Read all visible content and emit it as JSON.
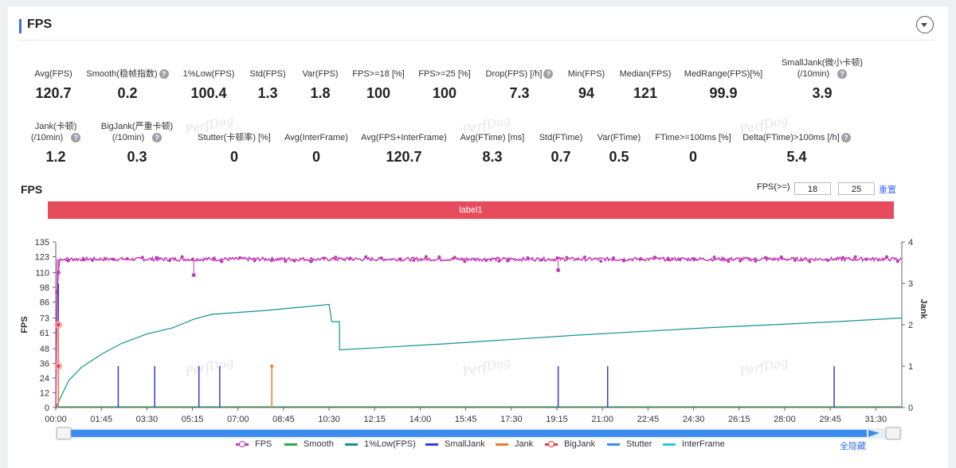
{
  "section": {
    "title": "FPS"
  },
  "stats_row1": [
    {
      "label": "Avg(FPS)",
      "value": "120.7"
    },
    {
      "label": "Smooth(稳帧指数)",
      "value": "0.2",
      "help": true
    },
    {
      "label": "1%Low(FPS)",
      "value": "100.4"
    },
    {
      "label": "Std(FPS)",
      "value": "1.3"
    },
    {
      "label": "Var(FPS)",
      "value": "1.8"
    },
    {
      "label": "FPS>=18 [%]",
      "value": "100"
    },
    {
      "label": "FPS>=25 [%]",
      "value": "100"
    },
    {
      "label": "Drop(FPS) [/h]",
      "value": "7.3",
      "help": true
    },
    {
      "label": "Min(FPS)",
      "value": "94"
    },
    {
      "label": "Median(FPS)",
      "value": "121"
    },
    {
      "label": "MedRange(FPS)[%]",
      "value": "99.9"
    },
    {
      "label": "SmallJank(微小卡顿)",
      "label2": "(/10min)",
      "value": "3.9",
      "help": true
    }
  ],
  "stats_row2": [
    {
      "label": "Jank(卡顿)",
      "label2": "(/10min)",
      "value": "1.2",
      "help": true
    },
    {
      "label": "BigJank(严重卡顿)",
      "label2": "(/10min)",
      "value": "0.3",
      "help": true
    },
    {
      "label": "Stutter(卡顿率) [%]",
      "value": "0"
    },
    {
      "label": "Avg(InterFrame)",
      "value": "0"
    },
    {
      "label": "Avg(FPS+InterFrame)",
      "value": "120.7"
    },
    {
      "label": "Avg(FTime) [ms]",
      "value": "8.3"
    },
    {
      "label": "Std(FTime)",
      "value": "0.7"
    },
    {
      "label": "Var(FTime)",
      "value": "0.5"
    },
    {
      "label": "FTime>=100ms [%]",
      "value": "0"
    },
    {
      "label": "Delta(FTime)>100ms [/h]",
      "value": "5.4",
      "help": true
    }
  ],
  "watermark": "PerfDog",
  "chart_title": "FPS",
  "threshold": {
    "label": "FPS(>=)",
    "low": "18",
    "high": "25",
    "reset_label": "重置"
  },
  "label_bar": "label1",
  "colors": {
    "fps": "#c33bb3",
    "smooth": "#2fa84a",
    "low": "#12958a",
    "smalljank": "#3a3ad6",
    "jank": "#f07a2a",
    "bigjank": "#e0393e",
    "stutter": "#3a8cf0",
    "interframe": "#2ec4e6",
    "label": "#e64c5b"
  },
  "chart_data": {
    "type": "line",
    "xlabel": "",
    "ylabel": "FPS",
    "y2label": "Jank",
    "ylim": [
      0,
      135
    ],
    "y2lim": [
      0,
      4
    ],
    "yticks": [
      0,
      12,
      24,
      36,
      48,
      61,
      73,
      86,
      98,
      110,
      123,
      135
    ],
    "y2ticks": [
      0,
      1,
      2,
      3,
      4
    ],
    "xticks": [
      "00:00",
      "01:45",
      "03:30",
      "05:15",
      "07:00",
      "08:45",
      "10:30",
      "12:15",
      "14:00",
      "15:45",
      "17:30",
      "19:15",
      "21:00",
      "22:45",
      "24:30",
      "26:15",
      "28:00",
      "29:45",
      "31:30"
    ],
    "x_range_minutes": [
      0,
      32.5
    ],
    "series": [
      {
        "name": "FPS",
        "baseline": 121,
        "dips": [
          {
            "t": 0.05,
            "v": 94
          },
          {
            "t": 0.1,
            "v": 110
          },
          {
            "t": 5.3,
            "v": 108
          },
          {
            "t": 19.3,
            "v": 112
          }
        ]
      },
      {
        "name": "1%Low(FPS)",
        "points": [
          [
            0,
            0
          ],
          [
            0.5,
            22
          ],
          [
            1,
            33
          ],
          [
            1.8,
            44
          ],
          [
            2.5,
            52
          ],
          [
            3.5,
            60
          ],
          [
            4.5,
            65
          ],
          [
            5.3,
            72
          ],
          [
            6,
            76
          ],
          [
            8,
            79
          ],
          [
            10.5,
            84
          ],
          [
            10.6,
            70
          ],
          [
            10.9,
            70
          ],
          [
            10.9,
            47
          ],
          [
            15,
            52
          ],
          [
            20,
            59
          ],
          [
            25,
            65
          ],
          [
            30,
            70
          ],
          [
            32.5,
            73
          ]
        ]
      },
      {
        "name": "SmallJank",
        "spikes": [
          {
            "t": 2.4,
            "v": 1
          },
          {
            "t": 3.8,
            "v": 1
          },
          {
            "t": 5.5,
            "v": 1
          },
          {
            "t": 6.3,
            "v": 1
          },
          {
            "t": 19.3,
            "v": 1
          },
          {
            "t": 21.2,
            "v": 1
          },
          {
            "t": 29.9,
            "v": 1
          },
          {
            "t": 0.1,
            "v": 3
          }
        ]
      },
      {
        "name": "Jank",
        "spikes": [
          {
            "t": 0.1,
            "v": 2
          },
          {
            "t": 8.3,
            "v": 1
          }
        ]
      },
      {
        "name": "BigJank",
        "points": [
          {
            "t": 0.1,
            "v": 2
          },
          {
            "t": 0.1,
            "v": 1
          }
        ]
      },
      {
        "name": "Smooth",
        "values": "near 0"
      },
      {
        "name": "Stutter",
        "values": "0"
      },
      {
        "name": "InterFrame",
        "values": "0"
      }
    ]
  },
  "legend": [
    "FPS",
    "Smooth",
    "1%Low(FPS)",
    "SmallJank",
    "Jank",
    "BigJank",
    "Stutter",
    "InterFrame"
  ],
  "hide_all": "全隐藏"
}
